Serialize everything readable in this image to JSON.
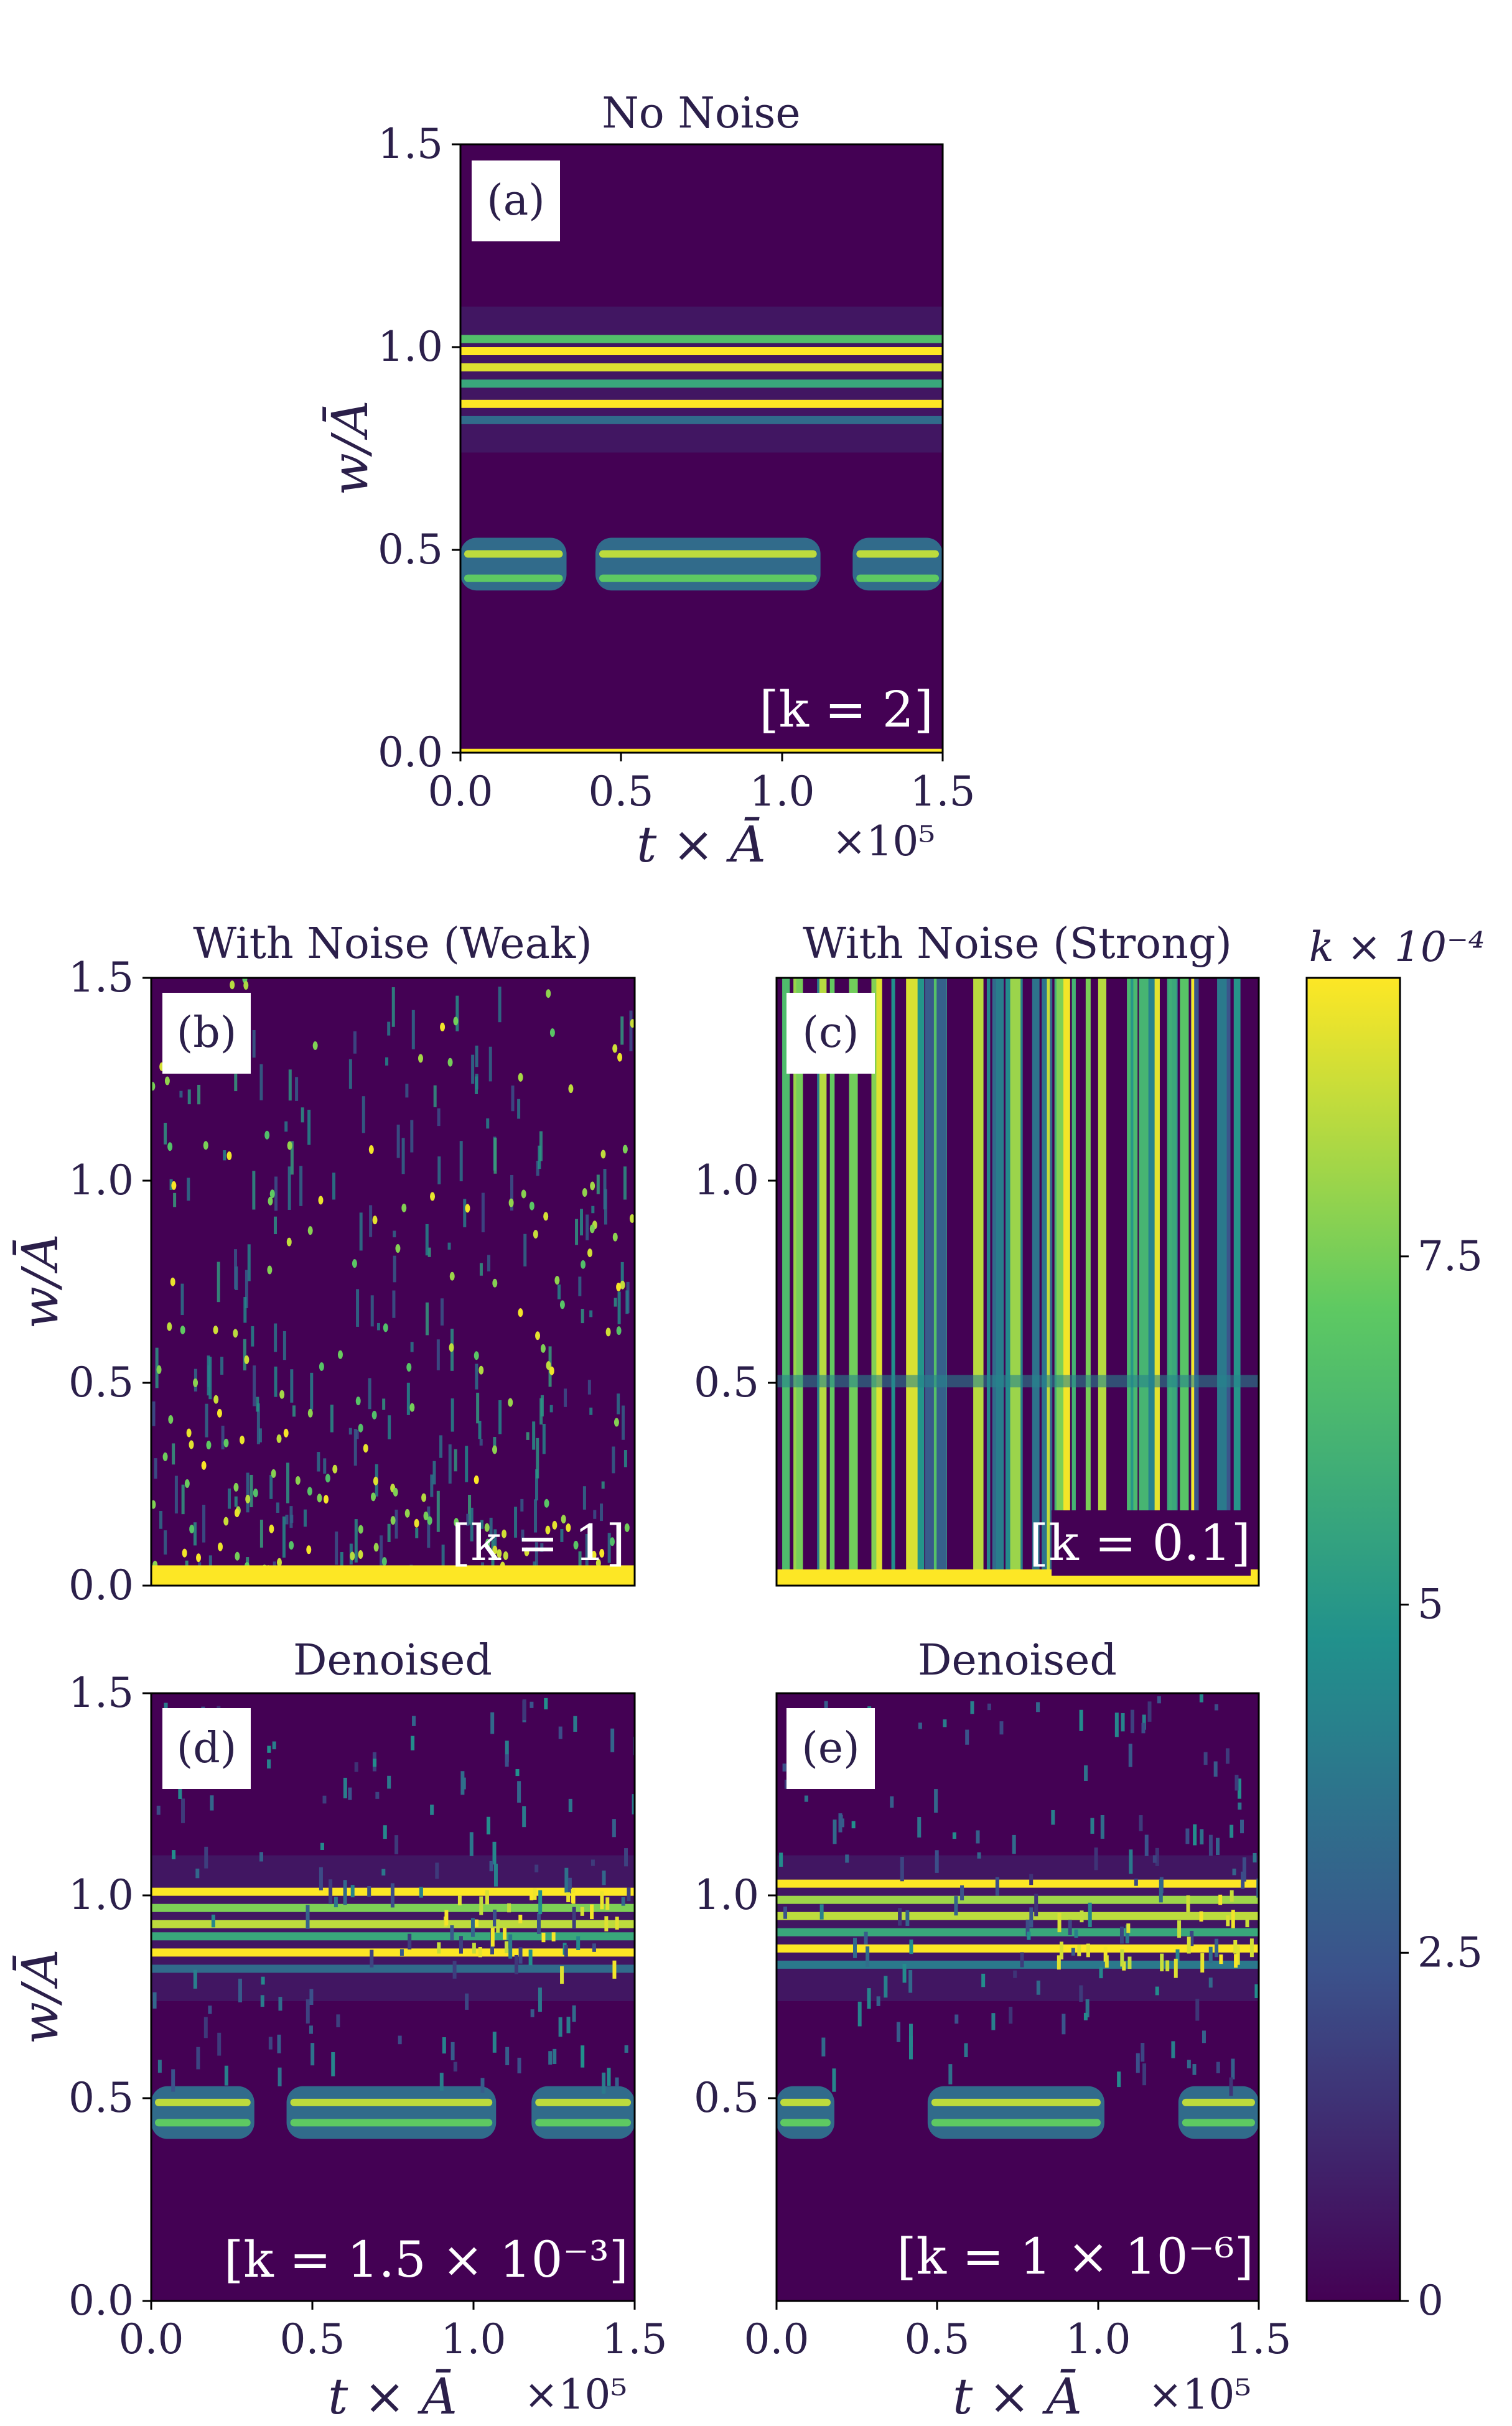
{
  "chart_data": [
    {
      "type": "heatmap",
      "panel": "(a)",
      "title": "No Noise",
      "annotation": "[k = 2]",
      "xlabel": "t × Ā",
      "x_multiplier": "×10⁵",
      "ylabel": "w/Ā",
      "xlim": [
        0.0,
        1.5
      ],
      "ylim": [
        0.0,
        1.5
      ],
      "xticks": [
        "0.0",
        "0.5",
        "1.0",
        "1.5"
      ],
      "yticks": [
        "0.0",
        "0.5",
        "1.0",
        "1.5"
      ],
      "bands": [
        {
          "w": 1.02,
          "intensity": 0.7
        },
        {
          "w": 0.99,
          "intensity": 1.0
        },
        {
          "w": 0.95,
          "intensity": 0.95
        },
        {
          "w": 0.91,
          "intensity": 0.6
        },
        {
          "w": 0.86,
          "intensity": 1.0
        },
        {
          "w": 0.82,
          "intensity": 0.35
        },
        {
          "w": 0.005,
          "intensity": 1.0
        }
      ],
      "band_segments_w": [
        0.49,
        0.43
      ],
      "band_segments_t": [
        [
          0.0,
          0.33
        ],
        [
          0.42,
          1.12
        ],
        [
          1.22,
          1.5
        ]
      ]
    },
    {
      "type": "heatmap",
      "panel": "(b)",
      "title": "With Noise (Weak)",
      "annotation": "[k = 1]",
      "ylabel": "w/Ā",
      "xlim": [
        0.0,
        1.5
      ],
      "ylim": [
        0.0,
        1.5
      ],
      "yticks": [
        "0.0",
        "0.5",
        "1.0",
        "1.5"
      ]
    },
    {
      "type": "heatmap",
      "panel": "(c)",
      "title": "With Noise (Strong)",
      "annotation": "[k = 0.1]",
      "xlim": [
        0.0,
        1.5
      ],
      "ylim": [
        0.0,
        1.5
      ],
      "yticks": [
        "0.5",
        "1.0"
      ]
    },
    {
      "type": "heatmap",
      "panel": "(d)",
      "title": "Denoised",
      "annotation": "[k = 1.5 × 10⁻³]",
      "xlabel": "t × Ā",
      "x_multiplier": "×10⁵",
      "ylabel": "w/Ā",
      "xlim": [
        0.0,
        1.5
      ],
      "ylim": [
        0.0,
        1.5
      ],
      "xticks": [
        "0.0",
        "0.5",
        "1.0",
        "1.5"
      ],
      "yticks": [
        "0.0",
        "0.5",
        "1.0",
        "1.5"
      ],
      "bands": [
        {
          "w": 1.01,
          "intensity": 1.0
        },
        {
          "w": 0.97,
          "intensity": 0.8
        },
        {
          "w": 0.93,
          "intensity": 0.9
        },
        {
          "w": 0.9,
          "intensity": 0.6
        },
        {
          "w": 0.86,
          "intensity": 1.0
        },
        {
          "w": 0.82,
          "intensity": 0.35
        }
      ],
      "band_segments_w": [
        0.49,
        0.44
      ],
      "band_segments_t": [
        [
          0.0,
          0.32
        ],
        [
          0.42,
          1.07
        ],
        [
          1.18,
          1.5
        ]
      ]
    },
    {
      "type": "heatmap",
      "panel": "(e)",
      "title": "Denoised",
      "annotation": "[k = 1 × 10⁻⁶]",
      "xlabel": "t × Ā",
      "x_multiplier": "×10⁵",
      "xlim": [
        0.0,
        1.5
      ],
      "ylim": [
        0.0,
        1.5
      ],
      "xticks": [
        "0.0",
        "0.5",
        "1.0",
        "1.5"
      ],
      "yticks": [
        "0.5",
        "1.0"
      ],
      "bands": [
        {
          "w": 1.03,
          "intensity": 1.0
        },
        {
          "w": 0.99,
          "intensity": 0.85
        },
        {
          "w": 0.95,
          "intensity": 0.9
        },
        {
          "w": 0.91,
          "intensity": 0.6
        },
        {
          "w": 0.87,
          "intensity": 1.0
        },
        {
          "w": 0.83,
          "intensity": 0.4
        }
      ],
      "band_segments_w": [
        0.49,
        0.44
      ],
      "band_segments_t": [
        [
          0.0,
          0.18
        ],
        [
          0.47,
          1.02
        ],
        [
          1.25,
          1.5
        ]
      ]
    }
  ],
  "colorbar": {
    "label": "k × 10⁻⁴",
    "ticks": [
      "0",
      "2.5",
      "5",
      "7.5"
    ],
    "tick_values": [
      0,
      2.5,
      5,
      7.5
    ],
    "vmax": 9.5,
    "colormap": "viridis"
  },
  "colors": {
    "background": "#440154",
    "colormap_stops": [
      "#440154",
      "#3b528b",
      "#21918c",
      "#5ec962",
      "#fde725"
    ],
    "text": "#2b1f4a"
  }
}
